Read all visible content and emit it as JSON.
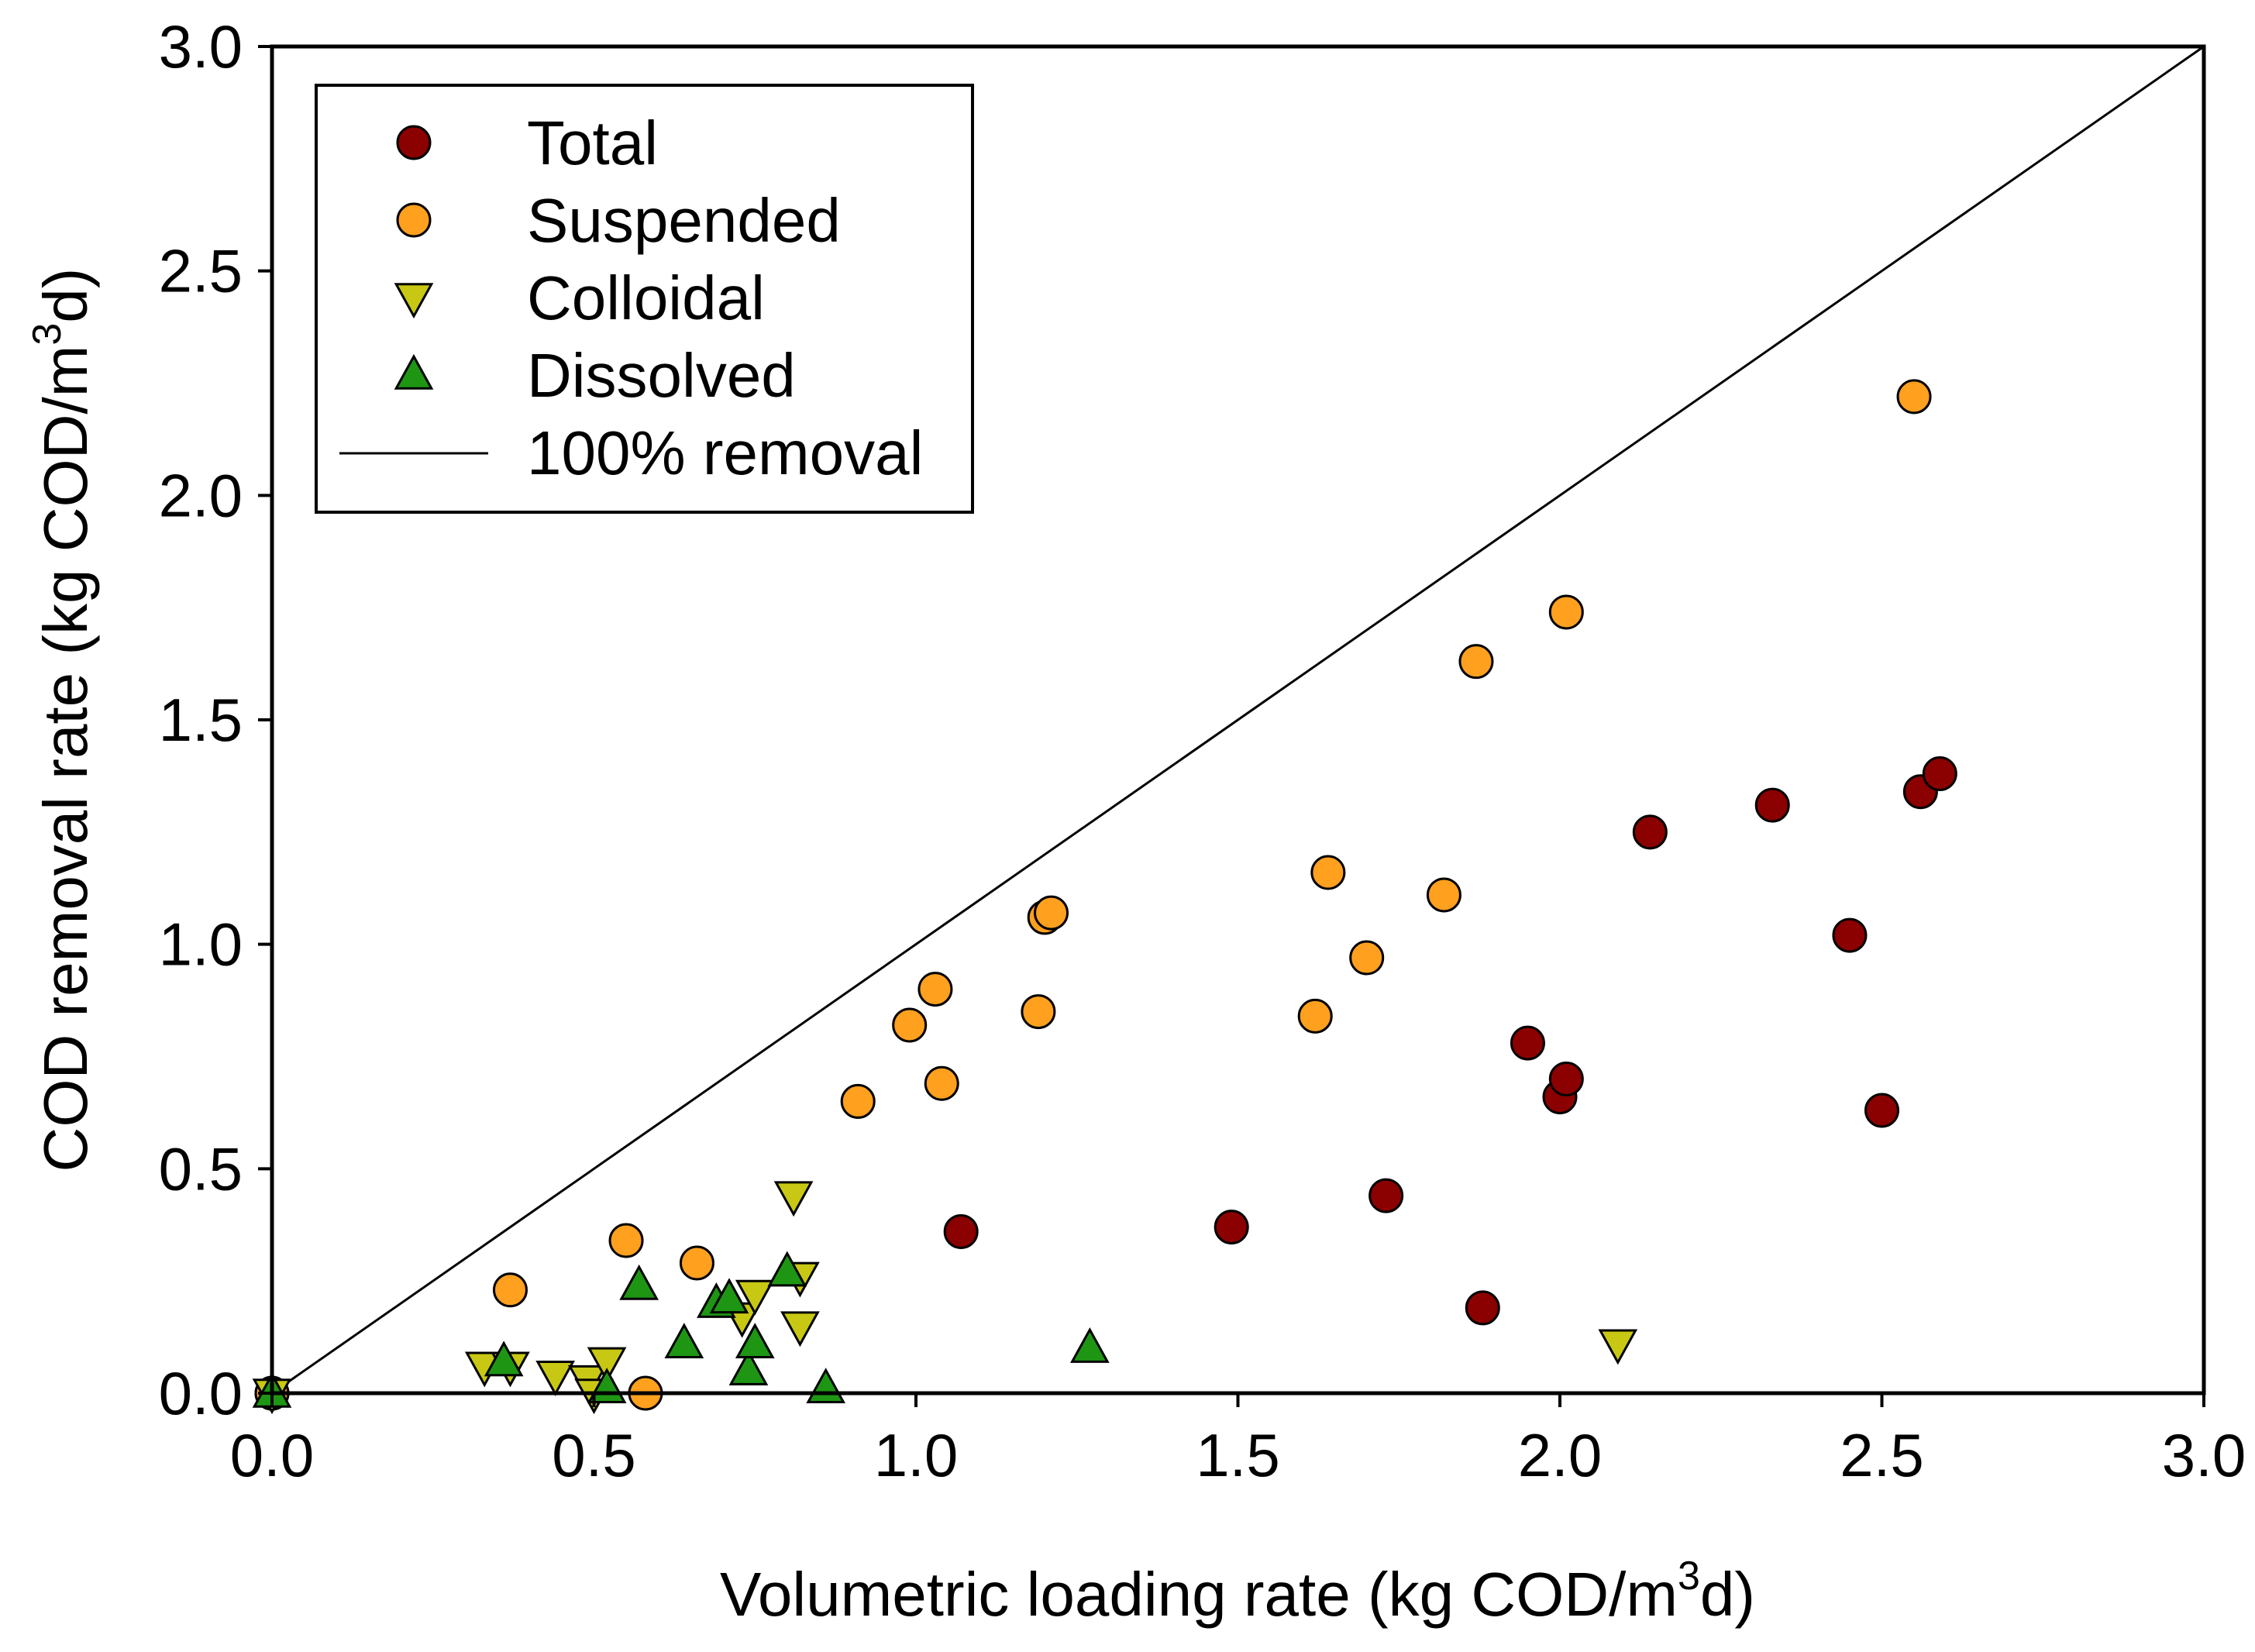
{
  "chart_data": {
    "type": "scatter",
    "title": "",
    "xlabel": {
      "prefix": "Volumetric loading rate (kg COD/m",
      "sup": "3",
      "suffix": "d)"
    },
    "ylabel": {
      "prefix": "COD removal rate (kg COD/m",
      "sup": "3",
      "suffix": "d)"
    },
    "xlim": [
      0,
      3
    ],
    "ylim": [
      0,
      3
    ],
    "xticks": [
      0.0,
      0.5,
      1.0,
      1.5,
      2.0,
      2.5,
      3.0
    ],
    "yticks": [
      0.0,
      0.5,
      1.0,
      1.5,
      2.0,
      2.5,
      3.0
    ],
    "xtick_labels": [
      "0.0",
      "0.5",
      "1.0",
      "1.5",
      "2.0",
      "2.5",
      "3.0"
    ],
    "ytick_labels": [
      "0.0",
      "0.5",
      "1.0",
      "1.5",
      "2.0",
      "2.5",
      "3.0"
    ],
    "grid": false,
    "legend_position": "top-left",
    "reference_line": {
      "name": "100% removal",
      "x": [
        0,
        3
      ],
      "y": [
        0,
        3
      ]
    },
    "series": [
      {
        "name": "Total",
        "marker": "circle",
        "color": "#8B0000",
        "points": [
          {
            "x": 0.0,
            "y": 0.0
          },
          {
            "x": 1.07,
            "y": 0.36
          },
          {
            "x": 1.49,
            "y": 0.37
          },
          {
            "x": 1.73,
            "y": 0.44
          },
          {
            "x": 1.88,
            "y": 0.19
          },
          {
            "x": 1.95,
            "y": 0.78
          },
          {
            "x": 2.0,
            "y": 0.66
          },
          {
            "x": 2.01,
            "y": 0.7
          },
          {
            "x": 2.14,
            "y": 1.25
          },
          {
            "x": 2.33,
            "y": 1.31
          },
          {
            "x": 2.45,
            "y": 1.02
          },
          {
            "x": 2.5,
            "y": 0.63
          },
          {
            "x": 2.56,
            "y": 1.34
          },
          {
            "x": 2.59,
            "y": 1.38
          }
        ]
      },
      {
        "name": "Suspended",
        "marker": "circle",
        "color": "#FFA01E",
        "points": [
          {
            "x": 0.0,
            "y": 0.0
          },
          {
            "x": 0.37,
            "y": 0.23
          },
          {
            "x": 0.55,
            "y": 0.34
          },
          {
            "x": 0.58,
            "y": 0.0
          },
          {
            "x": 0.66,
            "y": 0.29
          },
          {
            "x": 0.91,
            "y": 0.65
          },
          {
            "x": 0.99,
            "y": 0.82
          },
          {
            "x": 1.03,
            "y": 0.9
          },
          {
            "x": 1.04,
            "y": 0.69
          },
          {
            "x": 1.19,
            "y": 0.85
          },
          {
            "x": 1.2,
            "y": 1.06
          },
          {
            "x": 1.21,
            "y": 1.07
          },
          {
            "x": 1.62,
            "y": 0.84
          },
          {
            "x": 1.64,
            "y": 1.16
          },
          {
            "x": 1.7,
            "y": 0.97
          },
          {
            "x": 1.82,
            "y": 1.11
          },
          {
            "x": 1.87,
            "y": 1.63
          },
          {
            "x": 2.01,
            "y": 1.74
          },
          {
            "x": 2.55,
            "y": 2.22
          }
        ]
      },
      {
        "name": "Colloidal",
        "marker": "triangle-down",
        "color": "#C8C814",
        "points": [
          {
            "x": 0.0,
            "y": 0.0
          },
          {
            "x": 0.33,
            "y": 0.06
          },
          {
            "x": 0.37,
            "y": 0.06
          },
          {
            "x": 0.44,
            "y": 0.04
          },
          {
            "x": 0.49,
            "y": 0.03
          },
          {
            "x": 0.5,
            "y": 0.0
          },
          {
            "x": 0.52,
            "y": 0.07
          },
          {
            "x": 0.73,
            "y": 0.17
          },
          {
            "x": 0.75,
            "y": 0.22
          },
          {
            "x": 0.81,
            "y": 0.44
          },
          {
            "x": 0.82,
            "y": 0.15
          },
          {
            "x": 0.82,
            "y": 0.26
          },
          {
            "x": 2.09,
            "y": 0.11
          }
        ]
      },
      {
        "name": "Dissolved",
        "marker": "triangle-up",
        "color": "#1E9614",
        "points": [
          {
            "x": 0.0,
            "y": 0.0
          },
          {
            "x": 0.36,
            "y": 0.07
          },
          {
            "x": 0.52,
            "y": 0.01
          },
          {
            "x": 0.57,
            "y": 0.24
          },
          {
            "x": 0.64,
            "y": 0.11
          },
          {
            "x": 0.69,
            "y": 0.2
          },
          {
            "x": 0.71,
            "y": 0.21
          },
          {
            "x": 0.74,
            "y": 0.05
          },
          {
            "x": 0.75,
            "y": 0.11
          },
          {
            "x": 0.8,
            "y": 0.27
          },
          {
            "x": 0.86,
            "y": 0.01
          },
          {
            "x": 1.27,
            "y": 0.1
          }
        ]
      }
    ]
  }
}
